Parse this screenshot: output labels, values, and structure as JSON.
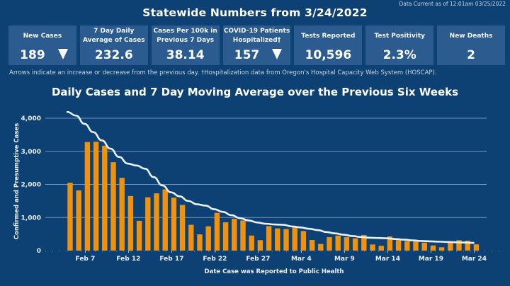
{
  "header": {
    "data_current": "Data Current as of 12:01am 03/25/2022",
    "title": "Statewide Numbers from 3/24/2022"
  },
  "cards": [
    {
      "label": "New Cases",
      "value": "189",
      "arrow": "down"
    },
    {
      "label": "7 Day Daily Average of Cases",
      "value": "232.6",
      "arrow": null
    },
    {
      "label": "Cases Per 100k in Previous 7 Days",
      "value": "38.14",
      "arrow": null
    },
    {
      "label": "COVID-19 Patients Hospitalized†",
      "value": "157",
      "arrow": "down"
    },
    {
      "label": "Tests Reported",
      "value": "10,596",
      "arrow": null
    },
    {
      "label": "Test Positivity",
      "value": "2.3%",
      "arrow": null
    },
    {
      "label": "New Deaths",
      "value": "2",
      "arrow": null
    }
  ],
  "footnote": "Arrows indicate an increase or decrease from the previous day. †Hospitalization data from Oregon's Hospital Capacity Web System (HOSCAP).",
  "colors": {
    "background": "#0e4173",
    "card": "#2b5b8f",
    "bar": "#f0920e",
    "line": "#e6f0f5",
    "gridline": "#6f97c0"
  },
  "chart_data": {
    "type": "bar",
    "title": "Daily Cases and 7 Day Moving Average over the Previous Six Weeks",
    "xlabel": "Date Case was Reported to Public Health",
    "ylabel": "Confirmed and Presumptive Cases",
    "ylim": [
      0,
      4300
    ],
    "yticks": [
      0,
      1000,
      2000,
      3000,
      4000
    ],
    "ytick_labels": [
      "0",
      "1,000",
      "2,000",
      "3,000",
      "4,000"
    ],
    "grid": true,
    "categories": [
      "Feb 5",
      "Feb 6",
      "Feb 7",
      "Feb 8",
      "Feb 9",
      "Feb 10",
      "Feb 11",
      "Feb 12",
      "Feb 13",
      "Feb 14",
      "Feb 15",
      "Feb 16",
      "Feb 17",
      "Feb 18",
      "Feb 19",
      "Feb 20",
      "Feb 21",
      "Feb 22",
      "Feb 23",
      "Feb 24",
      "Feb 25",
      "Feb 26",
      "Feb 27",
      "Feb 28",
      "Mar 1",
      "Mar 2",
      "Mar 3",
      "Mar 4",
      "Mar 5",
      "Mar 6",
      "Mar 7",
      "Mar 8",
      "Mar 9",
      "Mar 10",
      "Mar 11",
      "Mar 12",
      "Mar 13",
      "Mar 14",
      "Mar 15",
      "Mar 16",
      "Mar 17",
      "Mar 18",
      "Mar 19",
      "Mar 20",
      "Mar 21",
      "Mar 22",
      "Mar 23",
      "Mar 24"
    ],
    "xtick_labels": [
      "Feb 7",
      "Feb 12",
      "Feb 17",
      "Feb 22",
      "Feb 27",
      "Mar 4",
      "Mar 9",
      "Mar 14",
      "Mar 19",
      "Mar 24"
    ],
    "series": [
      {
        "name": "Daily Cases",
        "type": "bar",
        "values": [
          2050,
          1820,
          3280,
          3290,
          3170,
          2670,
          2200,
          1650,
          900,
          1610,
          1730,
          1850,
          1600,
          1380,
          780,
          490,
          735,
          1140,
          855,
          960,
          910,
          455,
          315,
          740,
          670,
          650,
          735,
          590,
          320,
          200,
          405,
          455,
          405,
          370,
          470,
          185,
          145,
          430,
          315,
          285,
          280,
          240,
          155,
          100,
          265,
          315,
          300,
          189
        ]
      },
      {
        "name": "7 Day Moving Average",
        "type": "line",
        "values": [
          4190,
          4080,
          3830,
          3580,
          3330,
          3080,
          2830,
          2630,
          2570,
          2475,
          2220,
          1970,
          1760,
          1640,
          1500,
          1400,
          1360,
          1250,
          1170,
          1070,
          980,
          910,
          850,
          810,
          790,
          780,
          730,
          700,
          660,
          620,
          560,
          520,
          480,
          440,
          410,
          390,
          380,
          370,
          350,
          330,
          310,
          290,
          280,
          270,
          260,
          250,
          245,
          233
        ]
      }
    ]
  }
}
